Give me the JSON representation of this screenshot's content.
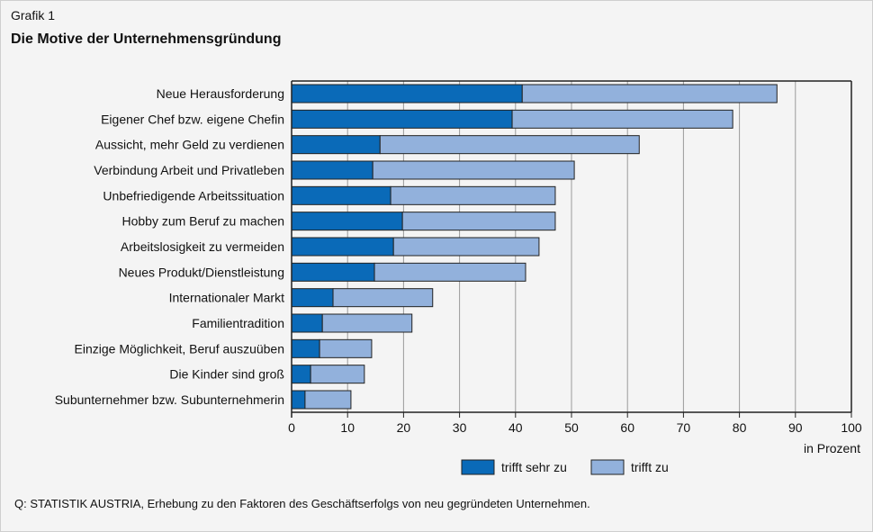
{
  "header": {
    "figure_label": "Grafik 1"
  },
  "source": "Q: STATISTIK AUSTRIA, Erhebung zu den Faktoren des Geschäftserfolgs von neu gegründeten Unternehmen.",
  "chart_data": {
    "type": "bar",
    "orientation": "horizontal",
    "stacked": true,
    "title": "Die Motive der Unternehmensgründung",
    "xlabel": "in Prozent",
    "xlim": [
      0,
      100
    ],
    "xticks": [
      0,
      10,
      20,
      30,
      40,
      50,
      60,
      70,
      80,
      90,
      100
    ],
    "grid": "vertical",
    "legend_position": "bottom-right",
    "categories": [
      "Neue Herausforderung",
      "Eigener Chef bzw. eigene Chefin",
      "Aussicht, mehr Geld zu verdienen",
      "Verbindung Arbeit und Privatleben",
      "Unbefriedigende Arbeitssituation",
      "Hobby zum Beruf zu machen",
      "Arbeitslosigkeit zu vermeiden",
      "Neues Produkt/Dienstleistung",
      "Internationaler Markt",
      "Familientradition",
      "Einzige Möglichkeit, Beruf auszuüben",
      "Die Kinder sind groß",
      "Subunternehmer bzw. Subunternehmerin"
    ],
    "series": [
      {
        "name": "trifft sehr zu",
        "color": "#0a6ab8",
        "values": [
          41.2,
          39.4,
          15.8,
          14.5,
          17.7,
          19.8,
          18.2,
          14.8,
          7.4,
          5.5,
          5.0,
          3.4,
          2.4
        ]
      },
      {
        "name": "trifft zu",
        "color": "#92b1dc",
        "values": [
          45.5,
          39.4,
          46.3,
          36.0,
          29.4,
          27.3,
          26.0,
          27.0,
          17.8,
          16.0,
          9.3,
          9.6,
          8.2
        ]
      }
    ]
  }
}
